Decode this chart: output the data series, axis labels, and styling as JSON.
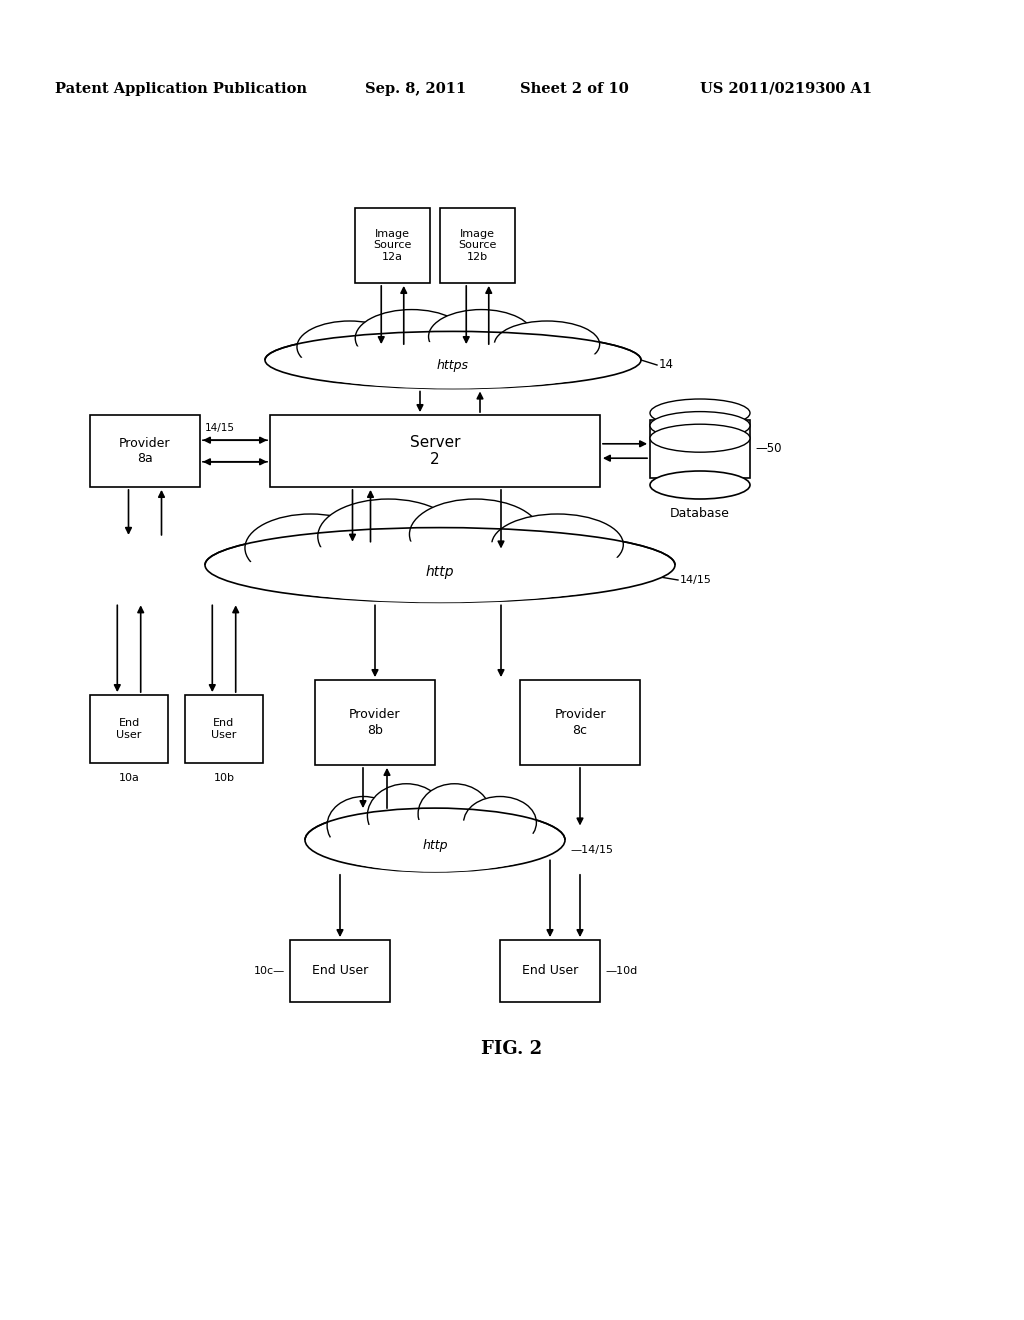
{
  "background_color": "#ffffff",
  "header_text": "Patent Application Publication",
  "header_date": "Sep. 8, 2011",
  "header_sheet": "Sheet 2 of 10",
  "header_patent": "US 2011/0219300 A1",
  "figure_label": "FIG. 2"
}
